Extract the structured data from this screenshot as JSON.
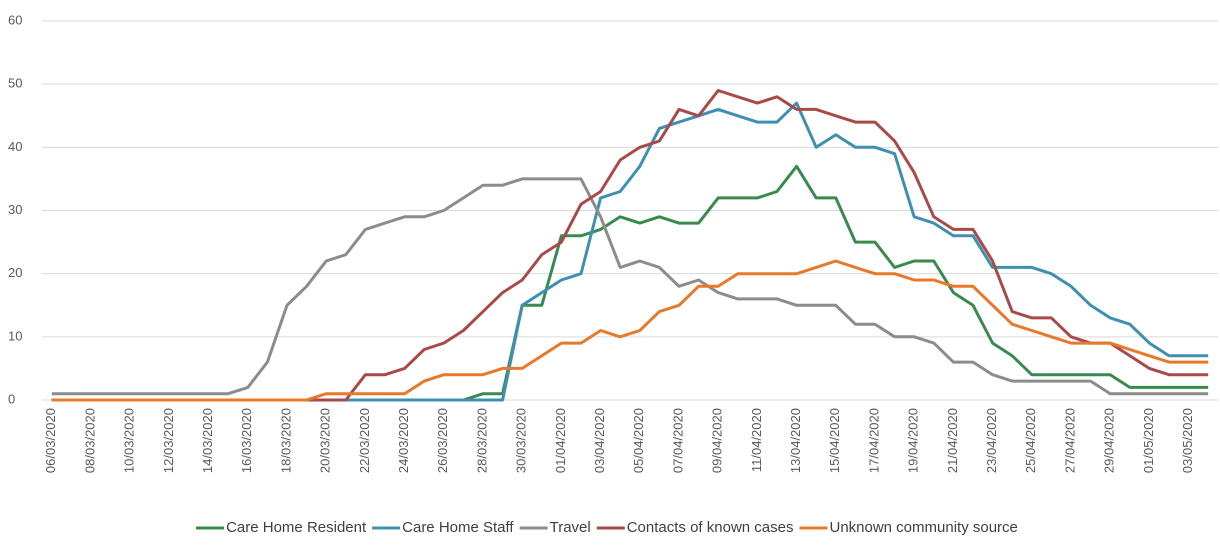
{
  "chart_data": {
    "type": "line",
    "categories": [
      "06/03/2020",
      null,
      "08/03/2020",
      null,
      "10/03/2020",
      null,
      "12/03/2020",
      null,
      "14/03/2020",
      null,
      "16/03/2020",
      null,
      "18/03/2020",
      null,
      "20/03/2020",
      null,
      "22/03/2020",
      null,
      "24/03/2020",
      null,
      "26/03/2020",
      null,
      "28/03/2020",
      null,
      "30/03/2020",
      null,
      "01/04/2020",
      null,
      "03/04/2020",
      null,
      "05/04/2020",
      null,
      "07/04/2020",
      null,
      "09/04/2020",
      null,
      "11/04/2020",
      null,
      "13/04/2020",
      null,
      "15/04/2020",
      null,
      "17/04/2020",
      null,
      "19/04/2020",
      null,
      "21/04/2020",
      null,
      "23/04/2020",
      null,
      "25/04/2020",
      null,
      "27/04/2020",
      null,
      "29/04/2020",
      null,
      "01/05/2020",
      null,
      "03/05/2020",
      null
    ],
    "series": [
      {
        "name": "Care Home Resident",
        "color": "#3a8a4f",
        "values": [
          0,
          0,
          0,
          0,
          0,
          0,
          0,
          0,
          0,
          0,
          0,
          0,
          0,
          0,
          0,
          0,
          0,
          0,
          0,
          0,
          0,
          0,
          1,
          1,
          15,
          15,
          26,
          26,
          27,
          29,
          28,
          29,
          28,
          28,
          32,
          32,
          32,
          33,
          37,
          32,
          32,
          25,
          25,
          21,
          22,
          22,
          17,
          15,
          9,
          7,
          4,
          4,
          4,
          4,
          4,
          2,
          2,
          2,
          2,
          2
        ]
      },
      {
        "name": "Care Home Staff",
        "color": "#3e8fb0",
        "values": [
          0,
          0,
          0,
          0,
          0,
          0,
          0,
          0,
          0,
          0,
          0,
          0,
          0,
          0,
          0,
          0,
          0,
          0,
          0,
          0,
          0,
          0,
          0,
          0,
          15,
          17,
          19,
          20,
          32,
          33,
          37,
          43,
          44,
          45,
          46,
          45,
          44,
          44,
          47,
          40,
          42,
          40,
          40,
          39,
          29,
          28,
          26,
          26,
          21,
          21,
          21,
          20,
          18,
          15,
          13,
          12,
          9,
          7,
          7,
          7
        ]
      },
      {
        "name": "Travel",
        "color": "#8c8c8c",
        "values": [
          1,
          1,
          1,
          1,
          1,
          1,
          1,
          1,
          1,
          1,
          2,
          6,
          15,
          18,
          22,
          23,
          27,
          28,
          29,
          29,
          30,
          32,
          34,
          34,
          35,
          35,
          35,
          35,
          29,
          21,
          22,
          21,
          18,
          19,
          17,
          16,
          16,
          16,
          15,
          15,
          15,
          12,
          12,
          10,
          10,
          9,
          6,
          6,
          4,
          3,
          3,
          3,
          3,
          3,
          1,
          1,
          1,
          1,
          1,
          1
        ]
      },
      {
        "name": "Contacts of known cases",
        "color": "#a94a4a",
        "values": [
          0,
          0,
          0,
          0,
          0,
          0,
          0,
          0,
          0,
          0,
          0,
          0,
          0,
          0,
          0,
          0,
          4,
          4,
          5,
          8,
          9,
          11,
          14,
          17,
          19,
          23,
          25,
          31,
          33,
          38,
          40,
          41,
          46,
          45,
          49,
          48,
          47,
          48,
          46,
          46,
          45,
          44,
          44,
          41,
          36,
          29,
          27,
          27,
          22,
          14,
          13,
          13,
          10,
          9,
          9,
          7,
          5,
          4,
          4,
          4
        ]
      },
      {
        "name": "Unknown community source",
        "color": "#e8782a",
        "values": [
          0,
          0,
          0,
          0,
          0,
          0,
          0,
          0,
          0,
          0,
          0,
          0,
          0,
          0,
          1,
          1,
          1,
          1,
          1,
          3,
          4,
          4,
          4,
          5,
          5,
          7,
          9,
          9,
          11,
          10,
          11,
          14,
          15,
          18,
          18,
          20,
          20,
          20,
          20,
          21,
          22,
          21,
          20,
          20,
          19,
          19,
          18,
          18,
          15,
          12,
          11,
          10,
          9,
          9,
          9,
          8,
          7,
          6,
          6,
          6
        ]
      }
    ],
    "ylim": [
      0,
      60
    ],
    "yticks": [
      0,
      10,
      20,
      30,
      40,
      50,
      60
    ],
    "grid": true,
    "legend": "bottom"
  }
}
